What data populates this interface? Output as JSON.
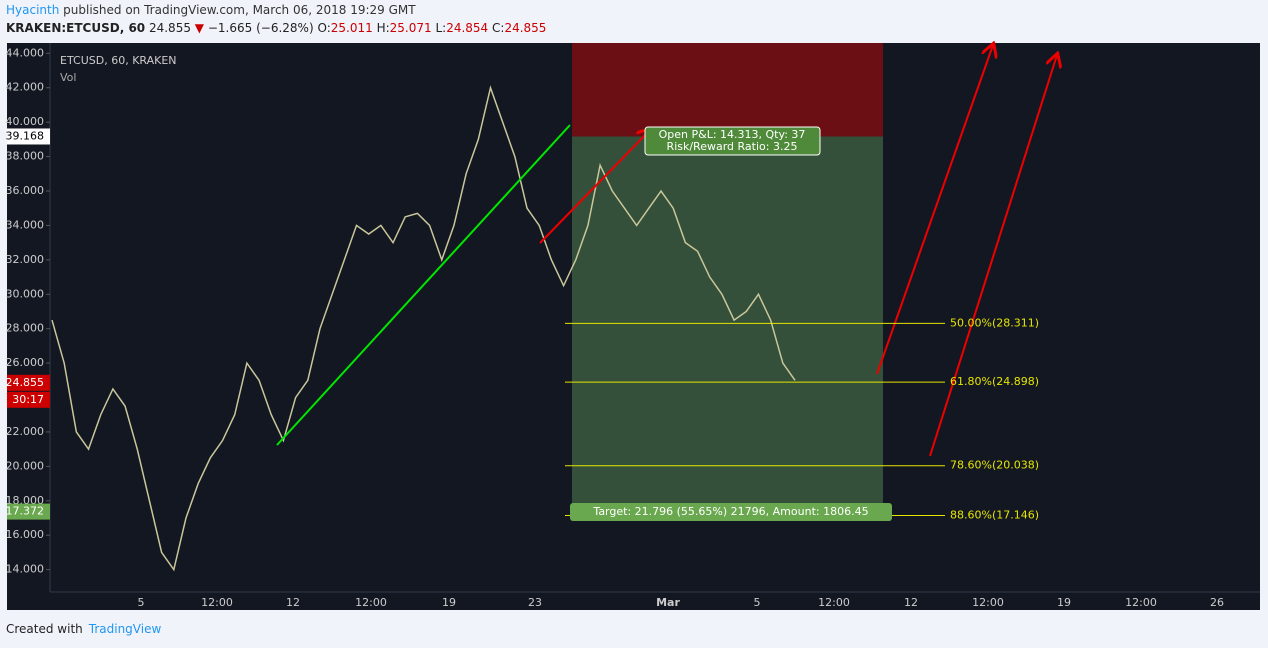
{
  "header": {
    "author": "Hyacinth",
    "published": "published on TradingView.com, March 06, 2018 19:29 GMT",
    "symbol": "KRAKEN:ETCUSD, 60",
    "last": "24.855",
    "arrow": "▼",
    "change": "−1.665 (−6.28%)",
    "ohlc": [
      {
        "key": "O:",
        "value": "25.011"
      },
      {
        "key": "H:",
        "value": "25.071"
      },
      {
        "key": "L:",
        "value": "24.854"
      },
      {
        "key": "C:",
        "value": "24.855"
      }
    ]
  },
  "chart": {
    "legend": "ETCUSD, 60, KRAKEN",
    "volume_label": "Vol",
    "ylim": [
      12.7,
      44.6
    ],
    "yticks": [
      {
        "value": 14,
        "label": "14.000"
      },
      {
        "value": 16,
        "label": "16.000"
      },
      {
        "value": 18,
        "label": "18.000"
      },
      {
        "value": 20,
        "label": "20.000"
      },
      {
        "value": 22,
        "label": "22.000"
      },
      {
        "value": 24,
        "label": "24.000"
      },
      {
        "value": 26,
        "label": "26.000"
      },
      {
        "value": 28,
        "label": "28.000"
      },
      {
        "value": 30,
        "label": "30.000"
      },
      {
        "value": 32,
        "label": "32.000"
      },
      {
        "value": 34,
        "label": "34.000"
      },
      {
        "value": 36,
        "label": "36.000"
      },
      {
        "value": 38,
        "label": "38.000"
      },
      {
        "value": 40,
        "label": "40.000"
      },
      {
        "value": 42,
        "label": "42.000"
      },
      {
        "value": 44,
        "label": "44.000"
      }
    ],
    "time_labels": [
      "5",
      "12:00",
      "12",
      "12:00",
      "19",
      "23",
      "Mar",
      "5",
      "12:00",
      "12",
      "12:00",
      "19",
      "12:00",
      "26"
    ],
    "price_tags": [
      {
        "value": 39.168,
        "label": "39.168"
      },
      {
        "value": 24.855,
        "label": "24.855"
      },
      {
        "value": 17.372,
        "label": "17.372"
      }
    ],
    "countdown": "30:17",
    "price": [
      28.5,
      26,
      22,
      21,
      23,
      24.5,
      23.5,
      21,
      18,
      15,
      14,
      17,
      19,
      20.5,
      21.5,
      23,
      26,
      25,
      23,
      21.5,
      24,
      25,
      28,
      30,
      32,
      34,
      33.5,
      34,
      33,
      34.5,
      34.7,
      34,
      32,
      34,
      37,
      39,
      42,
      40,
      38,
      35,
      34,
      32,
      30.5,
      32,
      34,
      37.5,
      36,
      35,
      34,
      35,
      36,
      35,
      33,
      32.5,
      31,
      30,
      28.5,
      29,
      30,
      28.5,
      26,
      25
    ],
    "pnl": [
      "Open P&L: 14.313, Qty: 37",
      "Risk/Reward Ratio: 3.25"
    ],
    "target": "Target: 21.796 (55.65%) 21796, Amount: 1806.45",
    "fib_levels": [
      {
        "label": "50.00%(28.311)",
        "value": 28.311
      },
      {
        "label": "61.80%(24.898)",
        "value": 24.898
      },
      {
        "label": "78.60%(20.038)",
        "value": 20.038
      },
      {
        "label": "88.60%(17.146)",
        "value": 17.146
      }
    ]
  },
  "footer": {
    "created": "Created with",
    "brand": "TradingView"
  }
}
